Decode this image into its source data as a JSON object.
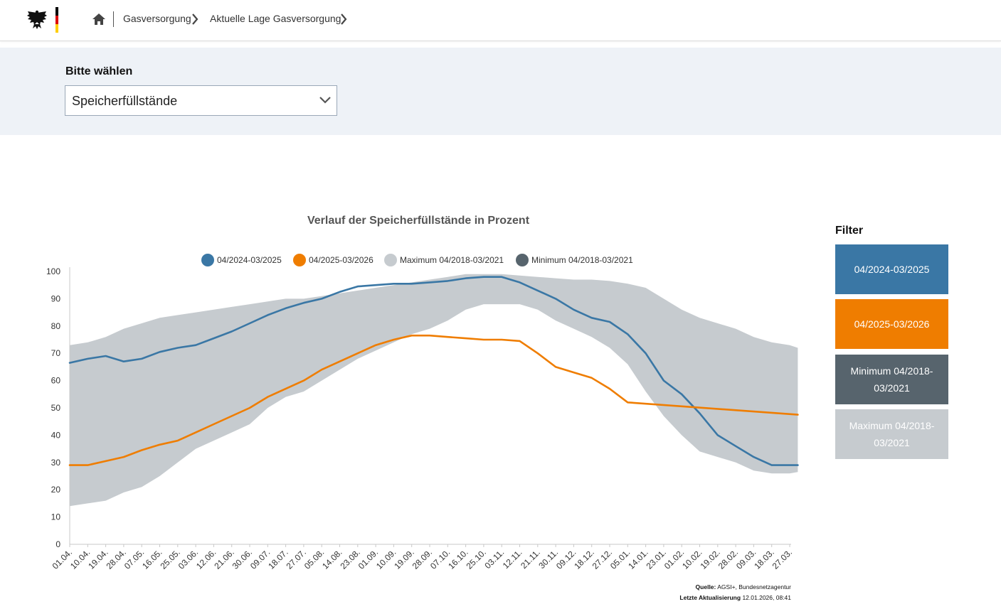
{
  "header": {
    "breadcrumb": [
      {
        "label": "Gasversorgung"
      },
      {
        "label": "Aktuelle Lage Gasversorgung"
      }
    ],
    "icons": {
      "logo": "federal-eagle-logo",
      "home": "home-icon",
      "separator": "chevron-right-icon"
    }
  },
  "selector": {
    "label": "Bitte wählen",
    "value": "Speicherfüllstände",
    "icon": "chevron-down-icon"
  },
  "filter": {
    "title": "Filter",
    "buttons": [
      {
        "label": "04/2024-03/2025",
        "color": "#3a77a5"
      },
      {
        "label": "04/2025-03/2026",
        "color": "#ef7d00"
      },
      {
        "label": "Minimum 04/2018-03/2021",
        "color": "#57646d"
      },
      {
        "label": "Maximum 04/2018-03/2021",
        "color": "#c6cbcf"
      }
    ]
  },
  "source": {
    "source_label": "Quelle:",
    "source_value": "AGSI+, Bundesnetzagentur",
    "update_label": "Letzte Aktualisierung",
    "update_value": "12.01.2026, 08:41"
  },
  "chart_data": {
    "type": "line",
    "title": "Verlauf der Speicherfüllstände in Prozent",
    "xlabel": "",
    "ylabel": "",
    "ylim": [
      0,
      100
    ],
    "yticks": [
      0,
      10,
      20,
      30,
      40,
      50,
      60,
      70,
      80,
      90,
      100
    ],
    "categories": [
      "01.04.",
      "10.04.",
      "19.04.",
      "28.04.",
      "07.05.",
      "16.05.",
      "25.05.",
      "03.06.",
      "12.06.",
      "21.06.",
      "30.06.",
      "09.07.",
      "18.07.",
      "27.07.",
      "05.08.",
      "14.08.",
      "23.08.",
      "01.09.",
      "10.09.",
      "19.09.",
      "28.09.",
      "07.10.",
      "16.10.",
      "25.10.",
      "03.11.",
      "12.11.",
      "21.11.",
      "30.11.",
      "09.12.",
      "18.12.",
      "27.12.",
      "05.01.",
      "14.01.",
      "23.01.",
      "01.02.",
      "10.02.",
      "19.02.",
      "28.02.",
      "09.03.",
      "18.03.",
      "27.03."
    ],
    "grid": false,
    "legend_position": "top",
    "band": {
      "upper_name": "Maximum 04/2018-03/2021",
      "lower_name": "Minimum 04/2018-03/2021",
      "upper_color": "#c6cbcf",
      "lower_color": "#57646d",
      "x": [
        "01.04.",
        "10.04.",
        "19.04.",
        "28.04.",
        "07.05.",
        "16.05.",
        "25.05.",
        "03.06.",
        "12.06.",
        "21.06.",
        "30.06.",
        "09.07.",
        "18.07.",
        "27.07.",
        "05.08.",
        "14.08.",
        "23.08.",
        "01.09.",
        "10.09.",
        "19.09.",
        "28.09.",
        "07.10.",
        "16.10.",
        "25.10.",
        "03.11.",
        "12.11.",
        "21.11.",
        "30.11.",
        "09.12.",
        "18.12.",
        "27.12.",
        "05.01.",
        "14.01.",
        "23.01.",
        "01.02.",
        "10.02.",
        "19.02.",
        "28.02.",
        "09.03.",
        "18.03.",
        "27.03.",
        "31.03."
      ],
      "upper": [
        73,
        74,
        76,
        79,
        81,
        83,
        84,
        85,
        86,
        87,
        88,
        89,
        90,
        90,
        91,
        92,
        93,
        94,
        95,
        96,
        97,
        98,
        99,
        99,
        99,
        98.5,
        98,
        97.5,
        97,
        97,
        96.5,
        95.5,
        94,
        90,
        86,
        83,
        81,
        79,
        76,
        74,
        73,
        72
      ],
      "lower": [
        14,
        15,
        16,
        19,
        21,
        25,
        30,
        35,
        38,
        41,
        44,
        50,
        54,
        56,
        60,
        64,
        68,
        71,
        74,
        77,
        79,
        82,
        86,
        88,
        88,
        88,
        86,
        82,
        79,
        76,
        72,
        66,
        56,
        47,
        40,
        34,
        32,
        30,
        27,
        26,
        26,
        26.5
      ]
    },
    "series": [
      {
        "name": "04/2024-03/2025",
        "color": "#3a77a5",
        "x": [
          "01.04.",
          "10.04.",
          "19.04.",
          "28.04.",
          "07.05.",
          "16.05.",
          "25.05.",
          "03.06.",
          "12.06.",
          "21.06.",
          "30.06.",
          "09.07.",
          "18.07.",
          "27.07.",
          "05.08.",
          "14.08.",
          "23.08.",
          "01.09.",
          "10.09.",
          "19.09.",
          "28.09.",
          "07.10.",
          "16.10.",
          "25.10.",
          "03.11.",
          "12.11.",
          "21.11.",
          "30.11.",
          "09.12.",
          "18.12.",
          "27.12.",
          "05.01.",
          "14.01.",
          "23.01.",
          "01.02.",
          "10.02.",
          "19.02.",
          "28.02.",
          "09.03.",
          "18.03.",
          "27.03.",
          "31.03."
        ],
        "values": [
          66.5,
          68,
          69,
          67,
          68,
          70.5,
          72,
          73,
          75.5,
          78,
          81,
          84,
          86.5,
          88.5,
          90,
          92.5,
          94.5,
          95,
          95.5,
          95.5,
          96,
          96.5,
          97.5,
          98,
          98,
          96,
          93,
          90,
          86,
          83,
          81.5,
          77,
          70,
          60,
          55,
          48,
          40,
          36,
          32,
          29,
          29,
          29
        ]
      },
      {
        "name": "04/2025-03/2026",
        "color": "#ef7d00",
        "x": [
          "01.04.",
          "10.04.",
          "19.04.",
          "28.04.",
          "07.05.",
          "16.05.",
          "25.05.",
          "03.06.",
          "12.06.",
          "21.06.",
          "30.06.",
          "09.07.",
          "18.07.",
          "27.07.",
          "05.08.",
          "14.08.",
          "23.08.",
          "01.09.",
          "10.09.",
          "19.09.",
          "28.09.",
          "07.10.",
          "16.10.",
          "25.10.",
          "03.11.",
          "12.11.",
          "21.11.",
          "30.11.",
          "09.12.",
          "18.12.",
          "27.12.",
          "05.01.",
          "12.01."
        ],
        "values": [
          29,
          29,
          30.5,
          32,
          34.5,
          36.5,
          38,
          41,
          44,
          47,
          50,
          54,
          57,
          60,
          64,
          67,
          70,
          73,
          75,
          76.5,
          76.5,
          76,
          75.5,
          75,
          75,
          74.5,
          70,
          65,
          63,
          61,
          57,
          52,
          47.5
        ]
      }
    ]
  }
}
